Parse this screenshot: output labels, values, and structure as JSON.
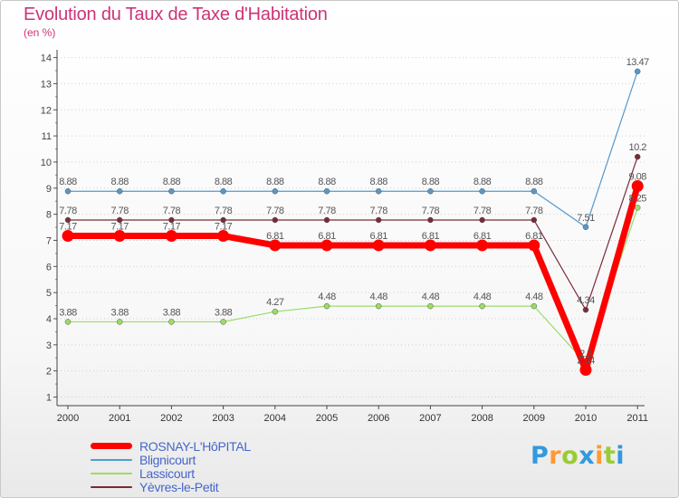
{
  "title": "Evolution du Taux de Taxe d'Habitation",
  "subtitle": "(en %)",
  "chart_data": {
    "type": "line",
    "title": "Evolution du Taux de Taxe d'Habitation",
    "ylabel": "(en %)",
    "xlabel": "",
    "ylim": [
      1,
      14
    ],
    "y_ticks": [
      1,
      2,
      3,
      4,
      5,
      6,
      7,
      8,
      9,
      10,
      11,
      12,
      13,
      14
    ],
    "categories": [
      "2000",
      "2001",
      "2002",
      "2003",
      "2004",
      "2005",
      "2006",
      "2007",
      "2008",
      "2009",
      "2010",
      "2011"
    ],
    "grid": "horizontal dotted",
    "series": [
      {
        "name": "Blignicourt",
        "color": "#5599cc",
        "width": 1.2,
        "values": [
          8.88,
          8.88,
          8.88,
          8.88,
          8.88,
          8.88,
          8.88,
          8.88,
          8.88,
          8.88,
          7.51,
          13.47
        ],
        "labels": [
          "8.88",
          "8.88",
          "8.88",
          "8.88",
          "8.88",
          "8.88",
          "8.88",
          "8.88",
          "8.88",
          "8.88",
          "7.51",
          "13.47"
        ]
      },
      {
        "name": "Yèvres-le-Petit",
        "color": "#7a2a38",
        "width": 1.2,
        "values": [
          7.78,
          7.78,
          7.78,
          7.78,
          7.78,
          7.78,
          7.78,
          7.78,
          7.78,
          7.78,
          4.34,
          10.2
        ],
        "labels": [
          "7.78",
          "7.78",
          "7.78",
          "7.78",
          "7.78",
          "7.78",
          "7.78",
          "7.78",
          "7.78",
          "7.78",
          "4.34",
          "10.2"
        ]
      },
      {
        "name": "Lassicourt",
        "color": "#99dd66",
        "width": 1.2,
        "values": [
          3.88,
          3.88,
          3.88,
          3.88,
          4.27,
          4.48,
          4.48,
          4.48,
          4.48,
          4.48,
          2.3,
          8.25
        ],
        "labels": [
          "3.88",
          "3.88",
          "3.88",
          "3.88",
          "4.27",
          "4.48",
          "4.48",
          "4.48",
          "4.48",
          "4.48",
          "2.3",
          "8.25"
        ]
      },
      {
        "name": "ROSNAY-L'HôPITAL",
        "color": "#ff0000",
        "width": 7,
        "values": [
          7.17,
          7.17,
          7.17,
          7.17,
          6.81,
          6.81,
          6.81,
          6.81,
          6.81,
          6.81,
          2.04,
          9.08
        ],
        "labels": [
          "7.17",
          "7.17",
          "7.17",
          "7.17",
          "6.81",
          "6.81",
          "6.81",
          "6.81",
          "6.81",
          "6.81",
          "2.04",
          "9.08"
        ]
      }
    ],
    "legend_order": [
      "ROSNAY-L'HôPITAL",
      "Blignicourt",
      "Lassicourt",
      "Yèvres-le-Petit"
    ],
    "legend_position": "bottom-left"
  },
  "logo": {
    "letters": [
      "P",
      "r",
      "o",
      "x",
      "i",
      "t",
      "i"
    ],
    "colors": [
      "#3399dd",
      "#ff9933",
      "#99cc33",
      "#3399dd",
      "#ff9933",
      "#99cc33",
      "#3399dd"
    ]
  }
}
